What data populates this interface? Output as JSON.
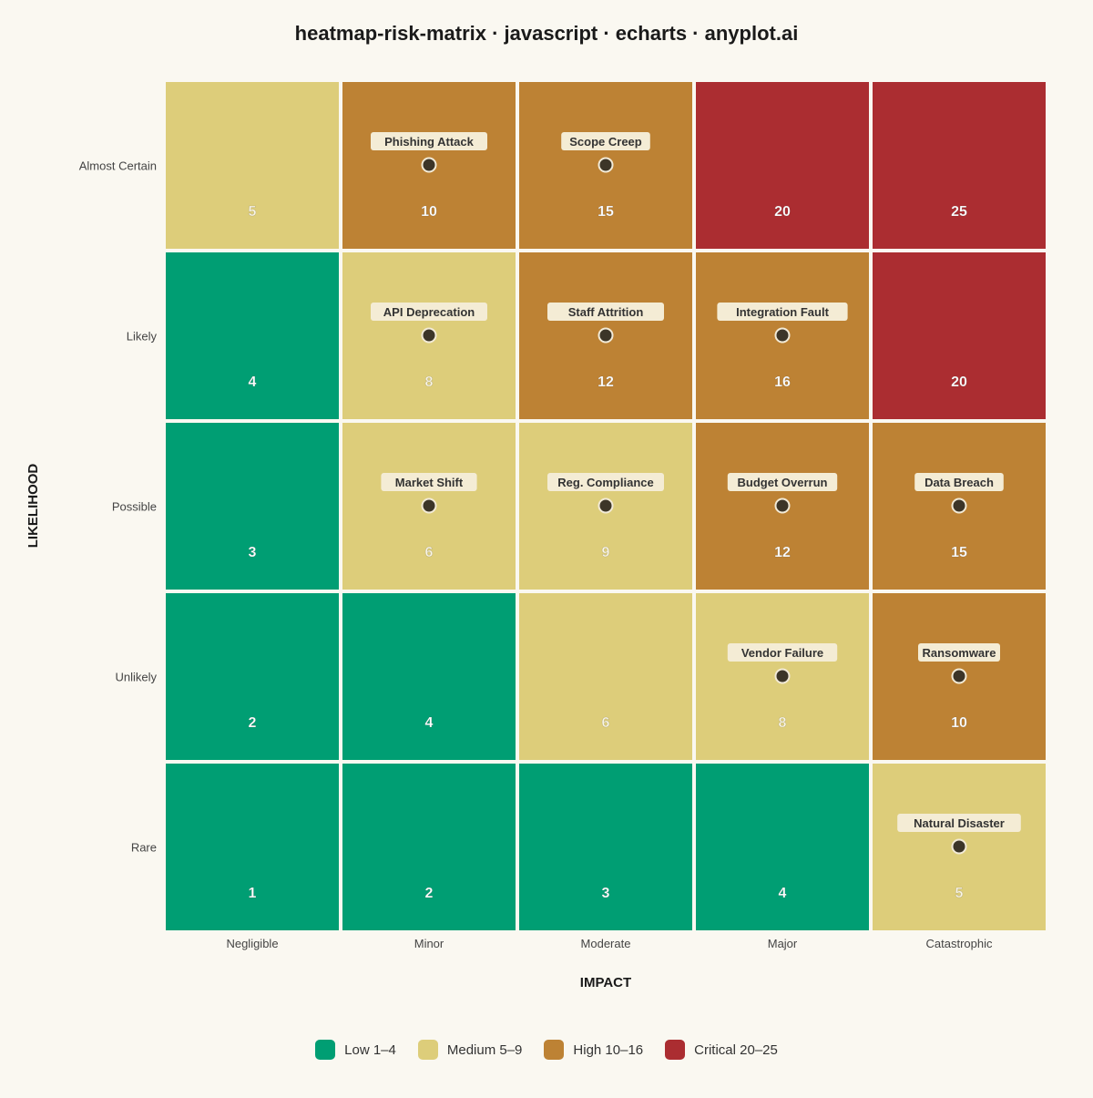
{
  "chart_data": {
    "type": "heatmap",
    "title": "heatmap-risk-matrix · javascript · echarts · anyplot.ai",
    "xlabel": "IMPACT",
    "ylabel": "LIKELIHOOD",
    "x_categories": [
      "Negligible",
      "Minor",
      "Moderate",
      "Major",
      "Catastrophic"
    ],
    "y_categories": [
      "Almost Certain",
      "Likely",
      "Possible",
      "Unlikely",
      "Rare"
    ],
    "scores": [
      [
        5,
        10,
        15,
        20,
        25
      ],
      [
        4,
        8,
        12,
        16,
        20
      ],
      [
        3,
        6,
        9,
        12,
        15
      ],
      [
        2,
        4,
        6,
        8,
        10
      ],
      [
        1,
        2,
        3,
        4,
        5
      ]
    ],
    "risks": [
      {
        "name": "Phishing Attack",
        "impact": "Minor",
        "likelihood": "Almost Certain"
      },
      {
        "name": "Scope Creep",
        "impact": "Moderate",
        "likelihood": "Almost Certain"
      },
      {
        "name": "API Deprecation",
        "impact": "Minor",
        "likelihood": "Likely"
      },
      {
        "name": "Staff Attrition",
        "impact": "Moderate",
        "likelihood": "Likely"
      },
      {
        "name": "Integration Fault",
        "impact": "Major",
        "likelihood": "Likely"
      },
      {
        "name": "Market Shift",
        "impact": "Minor",
        "likelihood": "Possible"
      },
      {
        "name": "Reg. Compliance",
        "impact": "Moderate",
        "likelihood": "Possible"
      },
      {
        "name": "Budget Overrun",
        "impact": "Major",
        "likelihood": "Possible"
      },
      {
        "name": "Data Breach",
        "impact": "Catastrophic",
        "likelihood": "Possible"
      },
      {
        "name": "Vendor Failure",
        "impact": "Major",
        "likelihood": "Unlikely"
      },
      {
        "name": "Ransomware",
        "impact": "Catastrophic",
        "likelihood": "Unlikely"
      },
      {
        "name": "Natural Disaster",
        "impact": "Catastrophic",
        "likelihood": "Rare"
      }
    ],
    "levels": [
      {
        "label": "Low 1–4",
        "min": 1,
        "max": 4,
        "color": "#009e73"
      },
      {
        "label": "Medium 5–9",
        "min": 5,
        "max": 9,
        "color": "#ddcd7a"
      },
      {
        "label": "High 10–16",
        "min": 10,
        "max": 16,
        "color": "#bd8234"
      },
      {
        "label": "Critical 20–25",
        "min": 20,
        "max": 25,
        "color": "#ab2d31"
      }
    ],
    "legend_position": "bottom-center"
  }
}
